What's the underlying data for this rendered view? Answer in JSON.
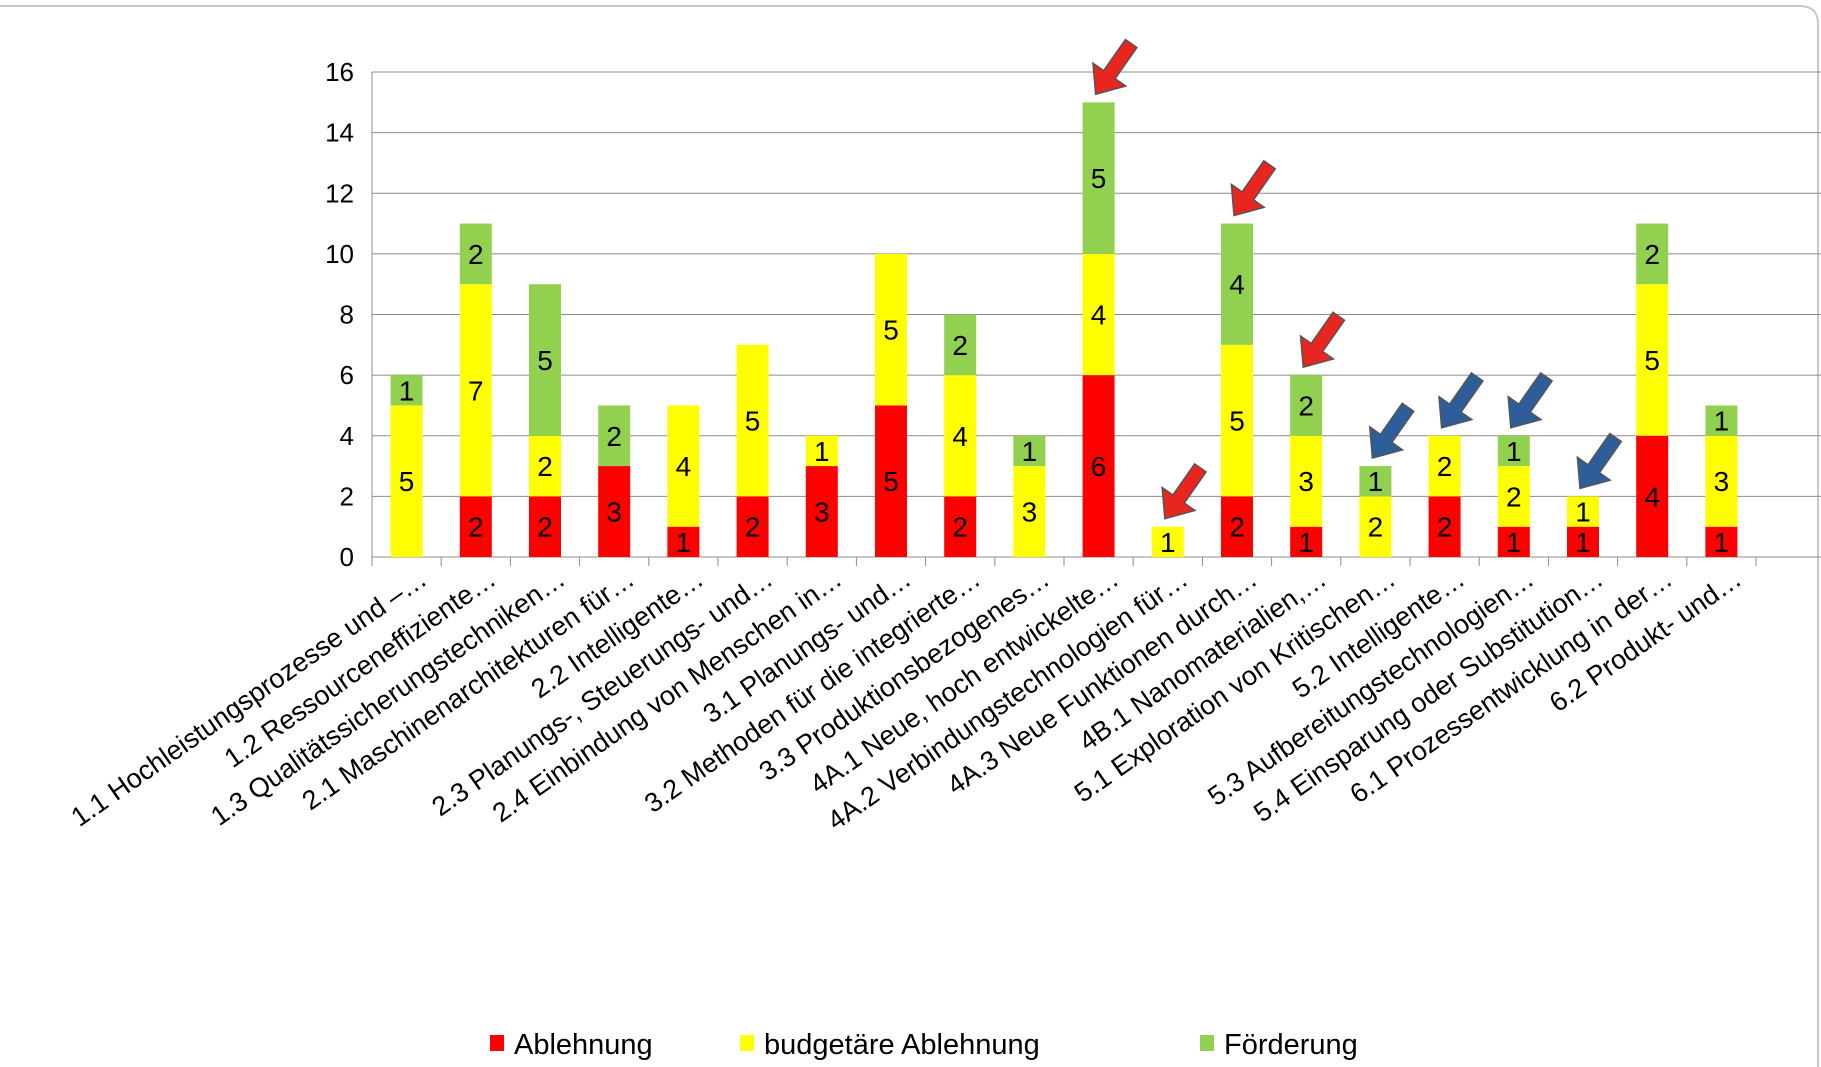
{
  "chart_data": {
    "type": "bar",
    "stacked": true,
    "title": "",
    "xlabel": "",
    "ylabel": "",
    "ylim": [
      0,
      16
    ],
    "yticks": [
      0,
      2,
      4,
      6,
      8,
      10,
      12,
      14,
      16
    ],
    "grid": true,
    "legend_position": "bottom",
    "categories": [
      "1.1 Hochleistungsprozesse und –…",
      "1.2 Ressourceneffiziente…",
      "1.3 Qualitätssicherungstechniken…",
      "2.1 Maschinenarchitekturen für…",
      "2.2 Intelligente…",
      "2.3 Planungs-, Steuerungs- und…",
      "2.4 Einbindung von Menschen in…",
      "3.1 Planungs- und…",
      "3.2 Methoden für die integrierte…",
      "3.3 Produktionsbezogenes…",
      "4A.1 Neue, hoch entwickelte…",
      "4A.2 Verbindungstechnologien für…",
      "4A.3 Neue Funktionen durch…",
      "4B.1 Nanomaterialien,…",
      "5.1 Exploration von Kritischen…",
      "5.2 Intelligente…",
      "5.3 Aufbereitungstechnologien…",
      "5.4 Einsparung oder Substitution…",
      "6.1 Prozessentwicklung in der…",
      "6.2 Produkt- und…"
    ],
    "series": [
      {
        "name": "Ablehnung",
        "color": "#ff0000",
        "values": [
          0,
          2,
          2,
          3,
          1,
          2,
          3,
          5,
          2,
          0,
          6,
          0,
          2,
          1,
          0,
          2,
          1,
          1,
          4,
          1
        ]
      },
      {
        "name": "budgetäre Ablehnung",
        "color": "#ffff00",
        "values": [
          5,
          7,
          2,
          0,
          4,
          5,
          1,
          5,
          4,
          3,
          4,
          1,
          5,
          3,
          2,
          2,
          2,
          1,
          5,
          3
        ]
      },
      {
        "name": "Förderung",
        "color": "#92d050",
        "values": [
          1,
          2,
          5,
          2,
          0,
          0,
          0,
          0,
          2,
          1,
          5,
          0,
          4,
          2,
          1,
          0,
          1,
          0,
          2,
          1
        ]
      }
    ],
    "annotations": [
      {
        "type": "arrow",
        "color": "#e8251e",
        "category_index": 10
      },
      {
        "type": "arrow",
        "color": "#e8251e",
        "category_index": 11
      },
      {
        "type": "arrow",
        "color": "#e8251e",
        "category_index": 12
      },
      {
        "type": "arrow",
        "color": "#e8251e",
        "category_index": 13
      },
      {
        "type": "arrow",
        "color": "#2e5e99",
        "category_index": 14
      },
      {
        "type": "arrow",
        "color": "#2e5e99",
        "category_index": 15
      },
      {
        "type": "arrow",
        "color": "#2e5e99",
        "category_index": 16
      },
      {
        "type": "arrow",
        "color": "#2e5e99",
        "category_index": 17
      }
    ]
  }
}
